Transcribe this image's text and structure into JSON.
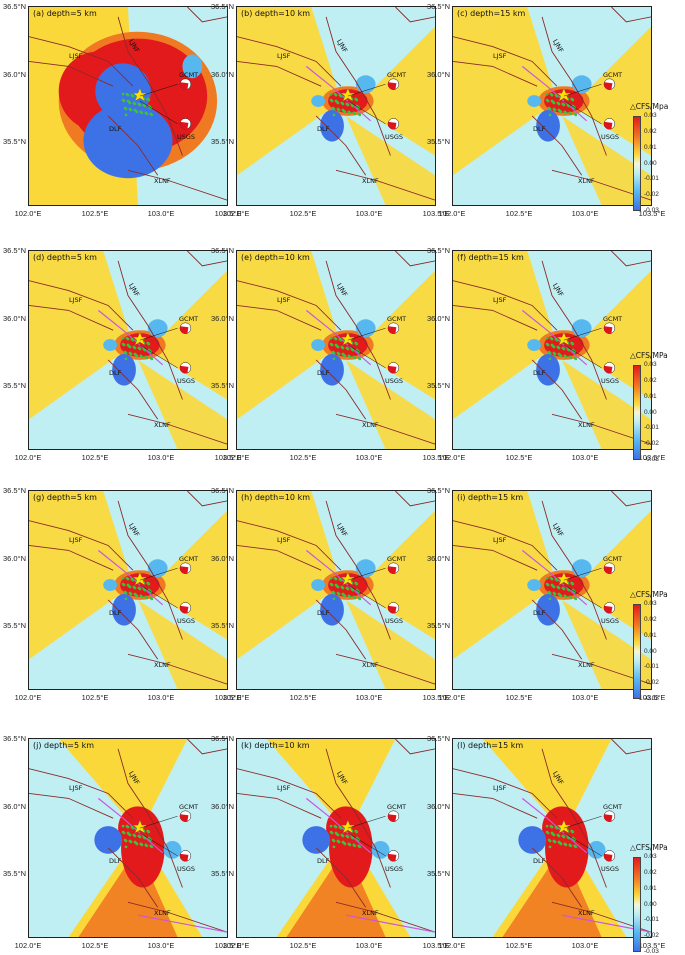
{
  "panels": [
    {
      "title": "(a) depth=5 km",
      "pattern": 1,
      "depth": 5,
      "lon_range": [
        102.0,
        103.5
      ],
      "lat_range": [
        35.05,
        36.5
      ]
    },
    {
      "title": "(b) depth=10 km",
      "pattern": 2,
      "depth": 10,
      "lon_range": [
        102.0,
        103.5
      ],
      "lat_range": [
        35.05,
        36.5
      ]
    },
    {
      "title": "(c) depth=15 km",
      "pattern": 2,
      "depth": 15,
      "lon_range": [
        102.0,
        103.5
      ],
      "lat_range": [
        35.05,
        36.5
      ]
    },
    {
      "title": "(d) depth=5 km",
      "pattern": 2,
      "depth": 5,
      "lon_range": [
        102.0,
        103.5
      ],
      "lat_range": [
        35.05,
        36.5
      ]
    },
    {
      "title": "(e) depth=10 km",
      "pattern": 2,
      "depth": 10,
      "lon_range": [
        102.0,
        103.5
      ],
      "lat_range": [
        35.05,
        36.5
      ]
    },
    {
      "title": "(f) depth=15 km",
      "pattern": 2,
      "depth": 15,
      "lon_range": [
        102.0,
        103.5
      ],
      "lat_range": [
        35.05,
        36.5
      ]
    },
    {
      "title": "(g) depth=5 km",
      "pattern": 2,
      "depth": 5,
      "lon_range": [
        102.0,
        103.5
      ],
      "lat_range": [
        35.05,
        36.5
      ]
    },
    {
      "title": "(h) depth=10 km",
      "pattern": 2,
      "depth": 10,
      "lon_range": [
        102.0,
        103.5
      ],
      "lat_range": [
        35.05,
        36.5
      ]
    },
    {
      "title": "(i) depth=15 km",
      "pattern": 2,
      "depth": 15,
      "lon_range": [
        102.0,
        103.5
      ],
      "lat_range": [
        35.05,
        36.5
      ]
    },
    {
      "title": "(j) depth=5 km",
      "pattern": 3,
      "depth": 5,
      "lon_range": [
        102.0,
        103.5
      ],
      "lat_range": [
        35.05,
        36.5
      ]
    },
    {
      "title": "(k) depth=10 km",
      "pattern": 3,
      "depth": 10,
      "lon_range": [
        102.0,
        103.5
      ],
      "lat_range": [
        35.05,
        36.5
      ]
    },
    {
      "title": "(l) depth=15 km",
      "pattern": 3,
      "depth": 15,
      "lon_range": [
        102.0,
        103.5
      ],
      "lat_range": [
        35.05,
        36.5
      ]
    }
  ],
  "lat_ticks": [
    "36.5°N",
    "36.0°N",
    "35.5°N"
  ],
  "lon_ticks": [
    "102.0°E",
    "102.5°E",
    "103.0°E",
    "103.5°E"
  ],
  "fault_labels": {
    "ljsf": "LJSF",
    "ljnf": "LJNF",
    "dlf": "DLF",
    "xlnf": "XLNF"
  },
  "event_labels": {
    "gcmt": "GCMT",
    "usgs": "USGS"
  },
  "colorbar_title_row1": "△CFS/Mpa",
  "colorbar_title": "△CFS/MPa",
  "colorbar_ticks": [
    "0.03",
    "0.02",
    "0.01",
    "0.00",
    "-0.01",
    "-0.02",
    "-0.03"
  ],
  "colors": {
    "positive_strong": "#e31a1c",
    "positive_mid": "#f07a22",
    "positive_weak": "#fbd83a",
    "neutral_negative_weak": "#bfeff3",
    "negative_mid": "#57b8f0",
    "negative_strong": "#3d72e6",
    "fault": "#8b2a2a",
    "modelled_fault": "#cc55dd",
    "aftershock": "#3fbf3f",
    "mainshock": "#ffe000",
    "beachball": "#e0121a",
    "frame": "#222222"
  }
}
